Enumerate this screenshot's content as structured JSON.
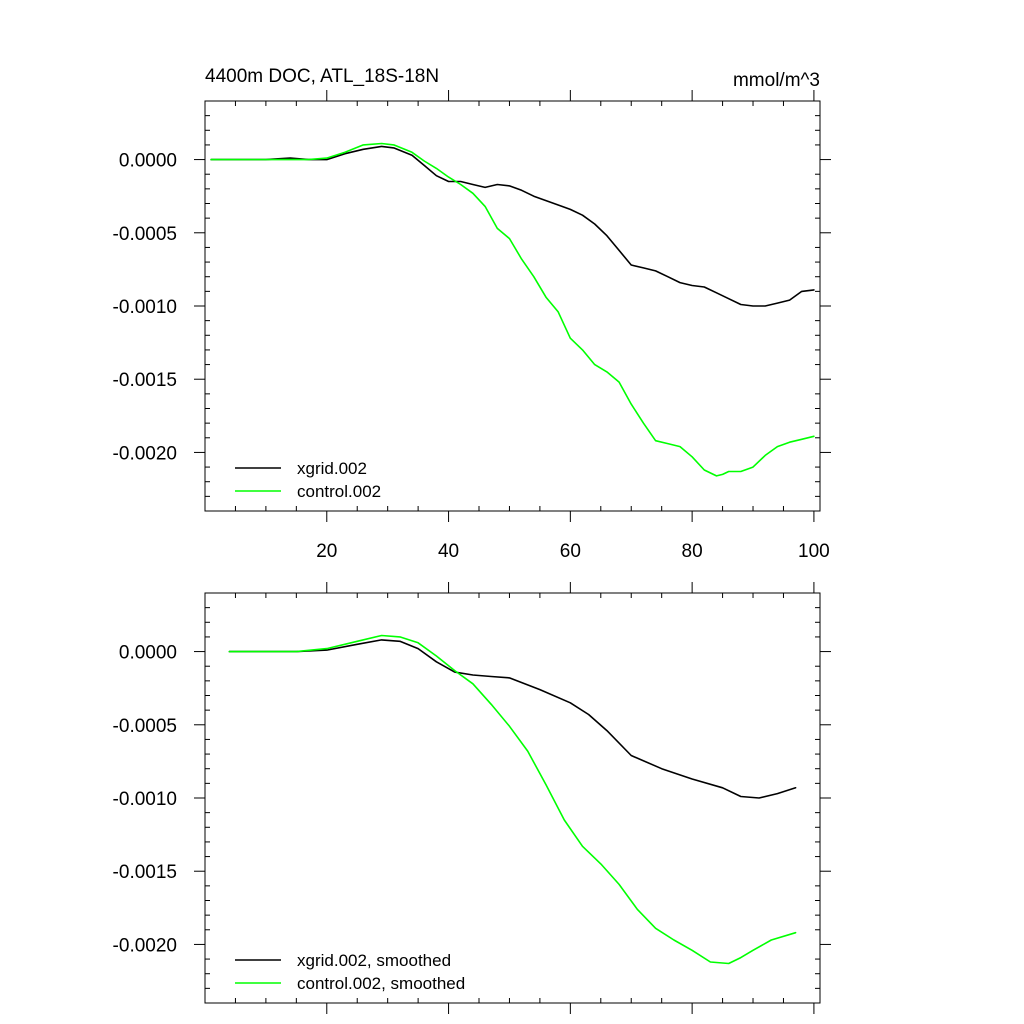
{
  "chart_data": [
    {
      "type": "line",
      "title": "4400m DOC, ATL_18S-18N",
      "units": "mmol/m^3",
      "xlim": [
        0,
        101
      ],
      "ylim": [
        -0.0024,
        0.0004
      ],
      "x_ticks": [
        20,
        40,
        60,
        80,
        100
      ],
      "x_tick_labels": [
        "20",
        "40",
        "60",
        "80",
        "100"
      ],
      "y_ticks": [
        0.0,
        -0.0005,
        -0.001,
        -0.0015,
        -0.002
      ],
      "y_tick_labels": [
        "0.0000",
        "-0.0005",
        "-0.0010",
        "-0.0015",
        "-0.0020"
      ],
      "grid": false,
      "legend_position": "bottom-left",
      "series": [
        {
          "name": "xgrid.002",
          "color": "#000000",
          "x": [
            1,
            5,
            10,
            14,
            17,
            20,
            23,
            26,
            29,
            31,
            34,
            36,
            38,
            40,
            42,
            44,
            46,
            48,
            50,
            52,
            54,
            56,
            58,
            60,
            62,
            64,
            66,
            68,
            70,
            72,
            74,
            76,
            78,
            80,
            82,
            84,
            86,
            88,
            90,
            92,
            94,
            96,
            98,
            100
          ],
          "values": [
            0.0,
            0.0,
            0.0,
            1e-05,
            0.0,
            0.0,
            4e-05,
            7e-05,
            9e-05,
            8e-05,
            3e-05,
            -4e-05,
            -0.00011,
            -0.00015,
            -0.00015,
            -0.00017,
            -0.00019,
            -0.00017,
            -0.00018,
            -0.00021,
            -0.00025,
            -0.00028,
            -0.00031,
            -0.00034,
            -0.00038,
            -0.00044,
            -0.00052,
            -0.00062,
            -0.00072,
            -0.00074,
            -0.00076,
            -0.0008,
            -0.00084,
            -0.00086,
            -0.00087,
            -0.00091,
            -0.00095,
            -0.00099,
            -0.001,
            -0.001,
            -0.00098,
            -0.00096,
            -0.0009,
            -0.00089
          ]
        },
        {
          "name": "control.002",
          "color": "#00ff00",
          "x": [
            1,
            5,
            10,
            14,
            17,
            20,
            23,
            26,
            29,
            31,
            34,
            36,
            38,
            40,
            42,
            44,
            46,
            48,
            50,
            52,
            54,
            56,
            58,
            60,
            62,
            64,
            66,
            68,
            70,
            72,
            74,
            76,
            78,
            80,
            82,
            84,
            85,
            86,
            88,
            90,
            92,
            94,
            96,
            98,
            100
          ],
          "values": [
            0.0,
            0.0,
            0.0,
            0.0,
            0.0,
            1e-05,
            5e-05,
            0.0001,
            0.00011,
            0.0001,
            5e-05,
            -1e-05,
            -6e-05,
            -0.00012,
            -0.00017,
            -0.00023,
            -0.00032,
            -0.00047,
            -0.00054,
            -0.00068,
            -0.0008,
            -0.00094,
            -0.00104,
            -0.00122,
            -0.0013,
            -0.0014,
            -0.00145,
            -0.00152,
            -0.00167,
            -0.0018,
            -0.00192,
            -0.00194,
            -0.00196,
            -0.00203,
            -0.00212,
            -0.00216,
            -0.00215,
            -0.00213,
            -0.00213,
            -0.0021,
            -0.00202,
            -0.00196,
            -0.00193,
            -0.00191,
            -0.00189
          ]
        }
      ]
    },
    {
      "type": "line",
      "title": "",
      "xlim": [
        0,
        101
      ],
      "ylim": [
        -0.0024,
        0.0004
      ],
      "x_ticks": [
        20,
        40,
        60,
        80,
        100
      ],
      "x_tick_labels": [
        "",
        "",
        "",
        "",
        ""
      ],
      "y_ticks": [
        0.0,
        -0.0005,
        -0.001,
        -0.0015,
        -0.002
      ],
      "y_tick_labels": [
        "0.0000",
        "-0.0005",
        "-0.0010",
        "-0.0015",
        "-0.0020"
      ],
      "grid": false,
      "legend_position": "bottom-left",
      "series": [
        {
          "name": "xgrid.002, smoothed",
          "color": "#000000",
          "x": [
            4,
            10,
            15,
            20,
            25,
            29,
            32,
            35,
            38,
            41,
            44,
            47,
            50,
            55,
            60,
            63,
            66,
            70,
            75,
            80,
            85,
            88,
            91,
            94,
            97
          ],
          "values": [
            0.0,
            0.0,
            0.0,
            1e-05,
            5e-05,
            8e-05,
            7e-05,
            2e-05,
            -7e-05,
            -0.00014,
            -0.00016,
            -0.00017,
            -0.00018,
            -0.00026,
            -0.00035,
            -0.00043,
            -0.00054,
            -0.00071,
            -0.0008,
            -0.00087,
            -0.00093,
            -0.00099,
            -0.001,
            -0.00097,
            -0.00093
          ]
        },
        {
          "name": "control.002, smoothed",
          "color": "#00ff00",
          "x": [
            4,
            10,
            15,
            20,
            25,
            29,
            32,
            35,
            38,
            41,
            44,
            47,
            50,
            53,
            56,
            59,
            62,
            65,
            68,
            71,
            74,
            77,
            80,
            83,
            86,
            88,
            90,
            93,
            97
          ],
          "values": [
            0.0,
            0.0,
            0.0,
            2e-05,
            7e-05,
            0.00011,
            0.0001,
            6e-05,
            -3e-05,
            -0.00013,
            -0.00022,
            -0.00036,
            -0.00051,
            -0.00068,
            -0.00091,
            -0.00115,
            -0.00133,
            -0.00145,
            -0.00159,
            -0.00176,
            -0.00189,
            -0.00197,
            -0.00204,
            -0.00212,
            -0.00213,
            -0.00209,
            -0.00204,
            -0.00197,
            -0.00192
          ]
        }
      ]
    }
  ]
}
